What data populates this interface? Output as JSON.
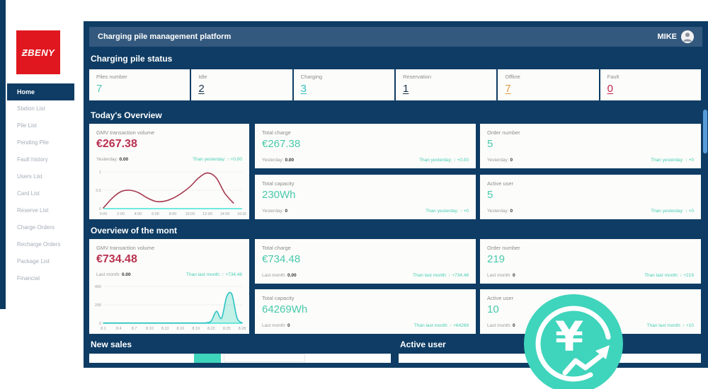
{
  "brand": {
    "logo_text": "ƵBENY"
  },
  "topbar": {
    "title": "Charging pile management platform",
    "user_name": "MIKE"
  },
  "sidebar": {
    "items": [
      {
        "label": "Home",
        "active": true
      },
      {
        "label": "Station List"
      },
      {
        "label": "Pile List"
      },
      {
        "label": "Pending Pile"
      },
      {
        "label": "Fault history"
      },
      {
        "label": "Users List"
      },
      {
        "label": "Card List"
      },
      {
        "label": "Reserve List"
      },
      {
        "label": "Charge Orders"
      },
      {
        "label": "Recharge Orders"
      },
      {
        "label": "Package List"
      },
      {
        "label": "Financial"
      }
    ]
  },
  "status": {
    "title": "Charging pile status",
    "cards": [
      {
        "label": "Piles number",
        "value": "7",
        "color": "#4fc7b0"
      },
      {
        "label": "Idle",
        "value": "2",
        "color": "#15324e"
      },
      {
        "label": "Charging",
        "value": "3",
        "color": "#2fbfbf"
      },
      {
        "label": "Reservation",
        "value": "1",
        "color": "#15324e"
      },
      {
        "label": "Offline",
        "value": "7",
        "color": "#df9d42"
      },
      {
        "label": "Fault",
        "value": "0",
        "color": "#c02447"
      }
    ]
  },
  "today": {
    "title": "Today's Overview",
    "gmv": {
      "label": "GMV transaction volume",
      "value": "€267.38",
      "value_color": "#b9314f",
      "compare_label": "Yesterday:",
      "compare_value": "0.00",
      "delta_label": "Than yesterday:",
      "delta_value": "↑ +0.00"
    },
    "cards": [
      {
        "label": "Total charge",
        "value": "€267.38",
        "compare_label": "Yesterday:",
        "compare_value": "0.00",
        "delta_label": "Than yesterday:",
        "delta_value": "↑ +0.00"
      },
      {
        "label": "Total capacity",
        "value": "230Wh",
        "compare_label": "Yesterday:",
        "compare_value": "0",
        "delta_label": "Than yesterday:",
        "delta_value": "↑ +0"
      },
      {
        "label": "Order number",
        "value": "5",
        "compare_label": "Yesterday:",
        "compare_value": "0",
        "delta_label": "Than yesterday:",
        "delta_value": "↑ +0"
      },
      {
        "label": "Active user",
        "value": "5",
        "compare_label": "Yesterday:",
        "compare_value": "0",
        "delta_label": "Than yesterday:",
        "delta_value": "↑ +0"
      }
    ]
  },
  "month": {
    "title": "Overview of the mont",
    "gmv": {
      "label": "GMV transaction volume",
      "value": "€734.48",
      "value_color": "#b9314f",
      "compare_label": "Last month:",
      "compare_value": "0.00",
      "delta_label": "Than last month:",
      "delta_value": "↑ +734.48"
    },
    "cards": [
      {
        "label": "Total charge",
        "value": "€734.48",
        "compare_label": "Last month:",
        "compare_value": "0.00",
        "delta_label": "Than last month:",
        "delta_value": "↑ +734.48"
      },
      {
        "label": "Total capacity",
        "value": "64269Wh",
        "compare_label": "Last month:",
        "compare_value": "0",
        "delta_label": "Than last month:",
        "delta_value": "↑ +64269"
      },
      {
        "label": "Order number",
        "value": "219",
        "compare_label": "Last month:",
        "compare_value": "0",
        "delta_label": "Than last month:",
        "delta_value": "↑ +219"
      },
      {
        "label": "Active user",
        "value": "10",
        "compare_label": "Last month:",
        "compare_value": "0",
        "delta_label": "Than last month:",
        "delta_value": "↑ +10"
      }
    ]
  },
  "bottom": {
    "new_sales_title": "New sales",
    "active_user_title": "Active user"
  },
  "chart_data": [
    {
      "id": "today-gmv",
      "type": "line",
      "title": "GMV transaction volume (today, hourly)",
      "x_ticks": [
        "0:00",
        "2:00",
        "4:00",
        "6:00",
        "8:00",
        "10:00",
        "12:00",
        "14:00",
        "16:00"
      ],
      "y_ticks": [
        0,
        0.5,
        1
      ],
      "y_max": 1,
      "x_max_index": 16,
      "values": [
        0.02,
        0.28,
        0.46,
        0.5,
        0.44,
        0.3,
        0.2,
        0.2,
        0.28,
        0.42,
        0.6,
        0.84,
        0.97,
        0.84,
        0.42,
        0.15
      ],
      "line_color": "#a6394f",
      "axis_color": "#45e3d8",
      "fill_color": null
    },
    {
      "id": "month-gmv",
      "type": "area",
      "title": "GMV transaction volume (month, daily)",
      "x_ticks": [
        "8.1",
        "8.4",
        "8.7",
        "8.10",
        "8.13",
        "8.16",
        "8.19",
        "8.22",
        "8.25",
        "8.28"
      ],
      "y_ticks": [
        0,
        200,
        400
      ],
      "y_max": 400,
      "x_max_index": 27,
      "values": [
        2,
        2,
        2,
        2,
        2,
        2,
        2,
        2,
        2,
        2,
        2,
        2,
        2,
        2,
        2,
        2,
        2,
        2,
        2,
        2,
        5,
        25,
        130,
        55,
        290,
        315,
        60,
        3
      ],
      "line_color": "#2fc3c3",
      "axis_color": "#45e3d8",
      "fill_color": "rgba(63,212,188,0.30)"
    }
  ],
  "colors": {
    "panel_navy": "#0e3c64",
    "header_blue": "#34597e",
    "logo_red": "#e0171f",
    "accent_teal": "#3fd4bc",
    "metric_teal": "#49c9ac",
    "delta_teal": "#45cdb4",
    "value_red": "#b9314f",
    "offline_orange": "#df9d42",
    "fault_red": "#c02447",
    "scrollbar_blue": "#579bd9"
  }
}
